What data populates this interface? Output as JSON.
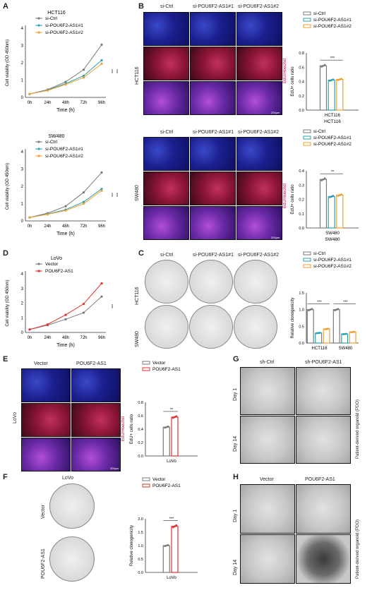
{
  "panels": {
    "A": "A",
    "B": "B",
    "C": "C",
    "D": "D",
    "E": "E",
    "F": "F",
    "G": "G",
    "H": "H"
  },
  "line_charts": [
    {
      "title": "HCT116",
      "ylabel": "Cell viability (OD 450nm)",
      "xlabel": "Time (h)",
      "ticks_x": [
        "0h",
        "24h",
        "48h",
        "72h",
        "96h"
      ],
      "ticks_y": [
        "0",
        "1",
        "2",
        "3",
        "4"
      ],
      "series": [
        {
          "name": "si-Ctrl",
          "values": [
            0.2,
            0.45,
            0.9,
            1.6,
            3.05
          ],
          "color": "#7a7a7a"
        },
        {
          "name": "si-POU6F2-AS1#1",
          "values": [
            0.2,
            0.42,
            0.8,
            1.25,
            2.15
          ],
          "color": "#2a9fb0"
        },
        {
          "name": "si-POU6F2-AS1#2",
          "values": [
            0.2,
            0.4,
            0.75,
            1.15,
            1.95
          ],
          "color": "#f0a030"
        }
      ],
      "sig": [
        "***",
        "***"
      ]
    },
    {
      "title": "SW480",
      "ylabel": "Cell viability (OD 450nm)",
      "xlabel": "Time (h)",
      "ticks_x": [
        "0h",
        "24h",
        "48h",
        "72h",
        "96h"
      ],
      "ticks_y": [
        "0",
        "1",
        "2",
        "3",
        "4"
      ],
      "series": [
        {
          "name": "si-Ctrl",
          "values": [
            0.2,
            0.45,
            0.85,
            1.65,
            2.8
          ],
          "color": "#7a7a7a"
        },
        {
          "name": "si-POU6F2-AS1#1",
          "values": [
            0.2,
            0.4,
            0.65,
            1.1,
            1.85
          ],
          "color": "#2a9fb0"
        },
        {
          "name": "si-POU6F2-AS1#2",
          "values": [
            0.2,
            0.38,
            0.6,
            1.0,
            1.75
          ],
          "color": "#f0a030"
        }
      ],
      "sig": [
        "***",
        "***"
      ]
    },
    {
      "title": "LoVo",
      "ylabel": "Cell viability (OD 450nm)",
      "xlabel": "Time (h)",
      "ticks_x": [
        "0h",
        "24h",
        "48h",
        "72h",
        "96h"
      ],
      "ticks_y": [
        "0",
        "1",
        "2",
        "3",
        "4"
      ],
      "series": [
        {
          "name": "Vector",
          "values": [
            0.2,
            0.5,
            0.9,
            1.35,
            2.45
          ],
          "color": "#7a7a7a"
        },
        {
          "name": "POU6F2-AS1",
          "values": [
            0.2,
            0.55,
            1.2,
            1.95,
            3.35
          ],
          "color": "#e03030"
        }
      ],
      "sig": [
        "***"
      ]
    }
  ],
  "bar_charts": [
    {
      "title": "HCT116",
      "ylabel": "EdU+ cells ratio",
      "ticks_y": [
        "0.0",
        "0.2",
        "0.4",
        "0.6",
        "0.8"
      ],
      "ymax": 0.8,
      "categories": [
        "HCT116"
      ],
      "series": [
        {
          "name": "si-Ctrl",
          "values": [
            0.62
          ],
          "color": "#7a7a7a"
        },
        {
          "name": "si-POU6F2-AS1#1",
          "values": [
            0.42
          ],
          "color": "#2a9fb0"
        },
        {
          "name": "si-POU6F2-AS1#2",
          "values": [
            0.43
          ],
          "color": "#f0a030"
        }
      ],
      "sig": [
        "***"
      ]
    },
    {
      "title": "SW480",
      "ylabel": "EdU+ cells ratio",
      "ticks_y": [
        "0.0",
        "0.1",
        "0.2",
        "0.3",
        "0.4"
      ],
      "ymax": 0.4,
      "categories": [
        "SW480"
      ],
      "series": [
        {
          "name": "si-Ctrl",
          "values": [
            0.34
          ],
          "color": "#7a7a7a"
        },
        {
          "name": "si-POU6F2-AS1#1",
          "values": [
            0.22
          ],
          "color": "#2a9fb0"
        },
        {
          "name": "si-POU6F2-AS1#2",
          "values": [
            0.23
          ],
          "color": "#f0a030"
        }
      ],
      "sig": [
        "**"
      ]
    },
    {
      "title": "",
      "ylabel": "Relative clonogenicity",
      "ticks_y": [
        "0.0",
        "0.5",
        "1.0",
        "1.5"
      ],
      "ymax": 1.5,
      "categories": [
        "HCT116",
        "SW480"
      ],
      "series": [
        {
          "name": "si-Ctrl",
          "values": [
            1.0,
            1.0
          ],
          "color": "#7a7a7a"
        },
        {
          "name": "si-POU6F2-AS1#1",
          "values": [
            0.3,
            0.27
          ],
          "color": "#2a9fb0"
        },
        {
          "name": "si-POU6F2-AS1#2",
          "values": [
            0.42,
            0.33
          ],
          "color": "#f0a030"
        }
      ],
      "sig": [
        "***",
        "***"
      ]
    },
    {
      "title": "",
      "ylabel": "EdU+ cells ratio",
      "ticks_y": [
        "0.0",
        "0.2",
        "0.4",
        "0.6",
        "0.8"
      ],
      "ymax": 0.8,
      "categories": [
        "LoVo"
      ],
      "series": [
        {
          "name": "Vector",
          "values": [
            0.43
          ],
          "color": "#7a7a7a"
        },
        {
          "name": "POU6F2-AS1",
          "values": [
            0.58
          ],
          "color": "#e03030"
        }
      ],
      "sig": [
        "**"
      ]
    },
    {
      "title": "",
      "ylabel": "Relative clonogenicity",
      "ticks_y": [
        "0.0",
        "0.5",
        "1.0",
        "1.5",
        "2.0"
      ],
      "ymax": 2.0,
      "categories": [
        "LoVo"
      ],
      "series": [
        {
          "name": "Vector",
          "values": [
            1.0
          ],
          "color": "#7a7a7a"
        },
        {
          "name": "POU6F2-AS1",
          "values": [
            1.72
          ],
          "color": "#e03030"
        }
      ],
      "sig": [
        "***"
      ]
    }
  ],
  "images": {
    "B_cols": [
      "si-Ctrl",
      "si-POU6F2-AS1#1",
      "si-POU6F2-AS1#2"
    ],
    "B_row1": "HCT116",
    "B_row2": "SW480",
    "B_side": "EdU/Hoechst",
    "scale": "200µm",
    "C_cols": [
      "si-Ctrl",
      "si-POU6F2-AS1#1",
      "si-POU6F2-AS1#2"
    ],
    "C_rows": [
      "HCT116",
      "SW480"
    ],
    "E_cols": [
      "Vector",
      "POU6F2-AS1"
    ],
    "E_row": "LoVo",
    "F_title": "LoVo",
    "F_rows": [
      "Vector",
      "POU6F2-AS1"
    ],
    "G_cols": [
      "sh-Ctrl",
      "sh-POU6F2-AS1"
    ],
    "H_cols": [
      "Vector",
      "POU6F2-AS1"
    ],
    "day_rows": [
      "Day 1",
      "Day 14"
    ],
    "pdo": "Patient-derived organoid (PDO)"
  }
}
